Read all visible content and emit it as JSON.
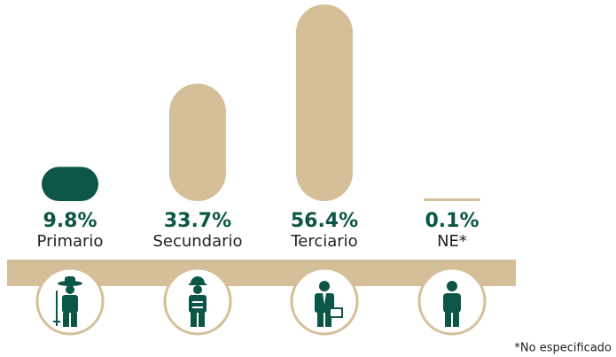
{
  "chart_data": {
    "type": "pill-bar",
    "categories": [
      "Primario",
      "Secundario",
      "Terciario",
      "NE*"
    ],
    "values": [
      9.8,
      33.7,
      56.4,
      0.1
    ],
    "value_labels": [
      "9.8%",
      "33.7%",
      "56.4%",
      "0.1%"
    ],
    "colors": [
      "#0b5646",
      "#d4bf98",
      "#d4bf98",
      "#d4bf98"
    ],
    "footnote": "*No especificado"
  }
}
